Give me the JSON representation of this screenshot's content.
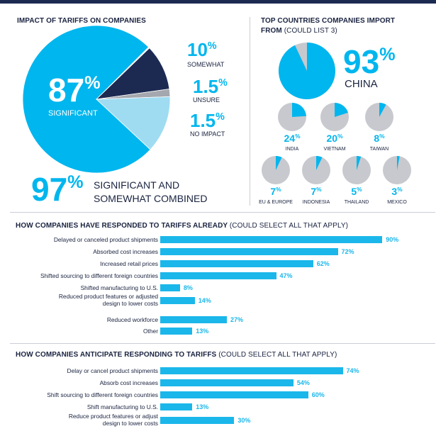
{
  "impact": {
    "title": "IMPACT OF TARIFFS ON COMPANIES",
    "significant": {
      "value": "87",
      "label": "SIGNIFICANT"
    },
    "somewhat": {
      "value": "10",
      "label": "SOMEWHAT"
    },
    "unsure": {
      "value": "1.5",
      "label": "UNSURE"
    },
    "no_impact": {
      "value": "1.5",
      "label": "NO IMPACT"
    },
    "combined": {
      "value": "97",
      "label_line1": "SIGNIFICANT AND",
      "label_line2": "SOMEWHAT COMBINED"
    },
    "percent_sign": "%"
  },
  "countries": {
    "title": "TOP COUNTRIES COMPANIES IMPORT",
    "title_line2": "FROM",
    "title_sub": "(COULD LIST 3)",
    "china": {
      "value": "93",
      "label": "CHINA"
    },
    "items": [
      {
        "name": "INDIA",
        "value": "24"
      },
      {
        "name": "VIETNAM",
        "value": "20"
      },
      {
        "name": "TAIWAN",
        "value": "8"
      },
      {
        "name": "EU & EUROPE",
        "value": "7"
      },
      {
        "name": "INDONESIA",
        "value": "7"
      },
      {
        "name": "THAILAND",
        "value": "5"
      },
      {
        "name": "MEXICO",
        "value": "3"
      }
    ]
  },
  "responded": {
    "title": "HOW COMPANIES HAVE RESPONDED TO TARIFFS ALREADY",
    "title_sub": "(COULD SELECT ALL THAT APPLY)"
  },
  "anticipate": {
    "title": "HOW COMPANIES ANTICIPATE RESPONDING TO TARIFFS",
    "title_sub": "(COULD SELECT ALL THAT APPLY)"
  },
  "colors": {
    "accent": "#00b6ee",
    "navy": "#1c2a52",
    "gray": "#c7c9ce"
  },
  "chart_data": [
    {
      "type": "pie",
      "title": "IMPACT OF TARIFFS ON COMPANIES",
      "slices": [
        {
          "label": "SIGNIFICANT",
          "value": 87
        },
        {
          "label": "SOMEWHAT",
          "value": 10
        },
        {
          "label": "UNSURE",
          "value": 1.5
        },
        {
          "label": "NO IMPACT",
          "value": 1.5
        }
      ]
    },
    {
      "type": "pie",
      "title": "TOP COUNTRIES COMPANIES IMPORT FROM (COULD LIST 3)",
      "categories": [
        "CHINA",
        "INDIA",
        "VIETNAM",
        "TAIWAN",
        "EU & EUROPE",
        "INDONESIA",
        "THAILAND",
        "MEXICO"
      ],
      "values": [
        93,
        24,
        20,
        8,
        7,
        7,
        5,
        3
      ]
    },
    {
      "type": "bar",
      "title": "HOW COMPANIES HAVE RESPONDED TO TARIFFS ALREADY (COULD SELECT ALL THAT APPLY)",
      "categories": [
        [
          "Delayed or canceled product shipments"
        ],
        [
          "Absorbed cost increases"
        ],
        [
          "Increased retail prices"
        ],
        [
          "Shifted sourcing to different foreign countries"
        ],
        [
          "Shifted manufacturing to U.S."
        ],
        [
          "Reduced product features or adjusted",
          "design to lower costs"
        ],
        [
          "Reduced workforce"
        ],
        [
          "Other"
        ]
      ],
      "values": [
        90,
        72,
        62,
        47,
        8,
        14,
        27,
        13
      ]
    },
    {
      "type": "bar",
      "title": "HOW COMPANIES ANTICIPATE RESPONDING TO TARIFFS (COULD SELECT ALL THAT APPLY)",
      "categories": [
        [
          "Delay or cancel product shipments"
        ],
        [
          "Absorb cost increases"
        ],
        [
          "Shift sourcing to different foreign countries"
        ],
        [
          "Shift manufacturing to U.S."
        ],
        [
          "Reduce product features or adjust",
          "design to lower costs"
        ]
      ],
      "values": [
        74,
        54,
        60,
        13,
        30
      ]
    }
  ]
}
